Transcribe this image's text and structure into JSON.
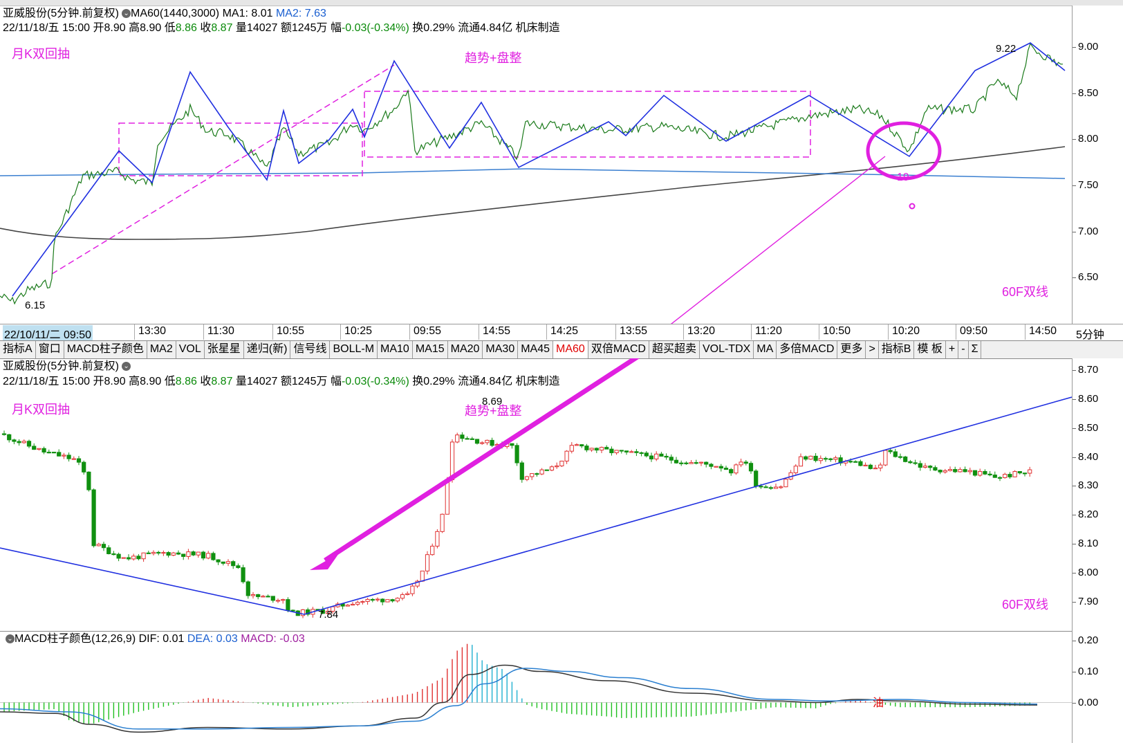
{
  "header": {
    "stock_name": "亚威股份(5分钟.前复权)",
    "ma60_label": "MA60(1440,3000)",
    "ma1_label": "MA1: 8.01",
    "ma2_label": "MA2: 7.63"
  },
  "quote": {
    "date": "22/11/18/五 15:00",
    "open": "开8.90",
    "high": "高8.90",
    "low_label": "低",
    "low_value": "8.86",
    "close_label": "收",
    "close_value": "8.87",
    "volume": "量14027",
    "amount": "额1245万",
    "change_label": "幅",
    "change_value": "-0.03(-0.34%)",
    "turnover": "换0.29%",
    "float_cap": "流通4.84亿",
    "industry": "机床制造"
  },
  "top_chart": {
    "annot_month": "月K双回抽",
    "annot_trend": "趋势+盘整",
    "annot_60f": "60F双线",
    "low_label": "6.15",
    "high_label": "9.22",
    "circle_label": "19",
    "y_ticks": [
      "9.00",
      "8.50",
      "8.00",
      "7.50",
      "7.00",
      "6.50"
    ],
    "y_values": [
      9.0,
      8.5,
      8.0,
      7.5,
      7.0,
      6.5
    ],
    "ylim": [
      6.0,
      9.45
    ]
  },
  "time_axis": {
    "labels": [
      "22/10/11/二 09:50",
      "13:30",
      "11:30",
      "10:55",
      "10:25",
      "09:55",
      "14:55",
      "14:25",
      "13:55",
      "13:20",
      "11:20",
      "10:50",
      "10:20",
      "09:50",
      "14:50"
    ],
    "period": "5分钟"
  },
  "tabs": [
    {
      "label": "指标A",
      "active": false
    },
    {
      "label": "窗口",
      "active": false
    },
    {
      "label": "MACD柱子颜色",
      "active": false
    },
    {
      "label": "MA2",
      "active": false
    },
    {
      "label": "VOL",
      "active": false
    },
    {
      "label": "张星星",
      "active": false
    },
    {
      "label": "递归(新)",
      "active": false
    },
    {
      "label": "信号线",
      "active": false
    },
    {
      "label": "BOLL-M",
      "active": false
    },
    {
      "label": "MA10",
      "active": false
    },
    {
      "label": "MA15",
      "active": false
    },
    {
      "label": "MA20",
      "active": false
    },
    {
      "label": "MA30",
      "active": false
    },
    {
      "label": "MA45",
      "active": false
    },
    {
      "label": "MA60",
      "active": true
    },
    {
      "label": "双倍MACD",
      "active": false
    },
    {
      "label": "超买超卖",
      "active": false
    },
    {
      "label": "VOL-TDX",
      "active": false
    },
    {
      "label": "MA",
      "active": false
    },
    {
      "label": "多倍MACD",
      "active": false
    },
    {
      "label": "更多",
      "active": false
    },
    {
      "label": ">",
      "active": false
    },
    {
      "label": "指标B",
      "active": false
    },
    {
      "label": "模 板",
      "active": false
    },
    {
      "label": "+",
      "active": false
    },
    {
      "label": "-",
      "active": false
    },
    {
      "label": "Σ",
      "active": false
    }
  ],
  "mid_chart": {
    "annot_month": "月K双回抽",
    "annot_trend": "趋势+盘整",
    "annot_60f": "60F双线",
    "low_label": "7.84",
    "high_label": "8.69",
    "y_ticks": [
      "8.70",
      "8.60",
      "8.50",
      "8.40",
      "8.30",
      "8.20",
      "8.10",
      "8.00",
      "7.90"
    ],
    "y_values": [
      8.7,
      8.6,
      8.5,
      8.4,
      8.3,
      8.2,
      8.1,
      8.0,
      7.9
    ],
    "ylim": [
      7.8,
      8.74
    ]
  },
  "macd": {
    "title": "MACD柱子颜色(12,26,9)",
    "dif": "DIF: 0.01",
    "dea": "DEA: 0.03",
    "macd": "MACD: -0.03",
    "signal_char": "油",
    "y_ticks": [
      "0.20",
      "0.10",
      "0.00"
    ],
    "y_values": [
      0.2,
      0.1,
      0.0
    ],
    "ylim": [
      -0.13,
      0.23
    ]
  },
  "colors": {
    "up": "#e03030",
    "down": "#109010",
    "trend_line": "#2030e0",
    "ma_line": "#3a7fd0",
    "long_ma": "#444444",
    "annotation": "#e020e0",
    "dif": "#333333",
    "dea": "#2a7fd0",
    "macd_up": "#e03030",
    "macd_down": "#20c020",
    "macd_cyan": "#20b0d0"
  }
}
